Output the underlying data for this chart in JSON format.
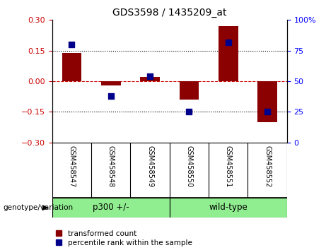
{
  "title": "GDS3598 / 1435209_at",
  "samples": [
    "GSM458547",
    "GSM458548",
    "GSM458549",
    "GSM458550",
    "GSM458551",
    "GSM458552"
  ],
  "red_bars": [
    0.14,
    -0.02,
    0.02,
    -0.09,
    0.27,
    -0.2
  ],
  "blue_dots_pct": [
    80,
    38,
    54,
    25,
    82,
    25
  ],
  "group_labels": [
    "p300 +/-",
    "wild-type"
  ],
  "group_starts": [
    0,
    3
  ],
  "group_ends": [
    3,
    6
  ],
  "group_color": "#90EE90",
  "ylim_left": [
    -0.3,
    0.3
  ],
  "ylim_right": [
    0,
    100
  ],
  "yticks_left": [
    -0.3,
    -0.15,
    0,
    0.15,
    0.3
  ],
  "yticks_right": [
    0,
    25,
    50,
    75,
    100
  ],
  "bar_color": "#8B0000",
  "dot_color": "#00008B",
  "bar_width": 0.5,
  "dot_size": 40,
  "legend_red": "transformed count",
  "legend_blue": "percentile rank within the sample",
  "genotype_label": "genotype/variation",
  "bg_color": "#ffffff",
  "sample_box_color": "#d3d3d3"
}
